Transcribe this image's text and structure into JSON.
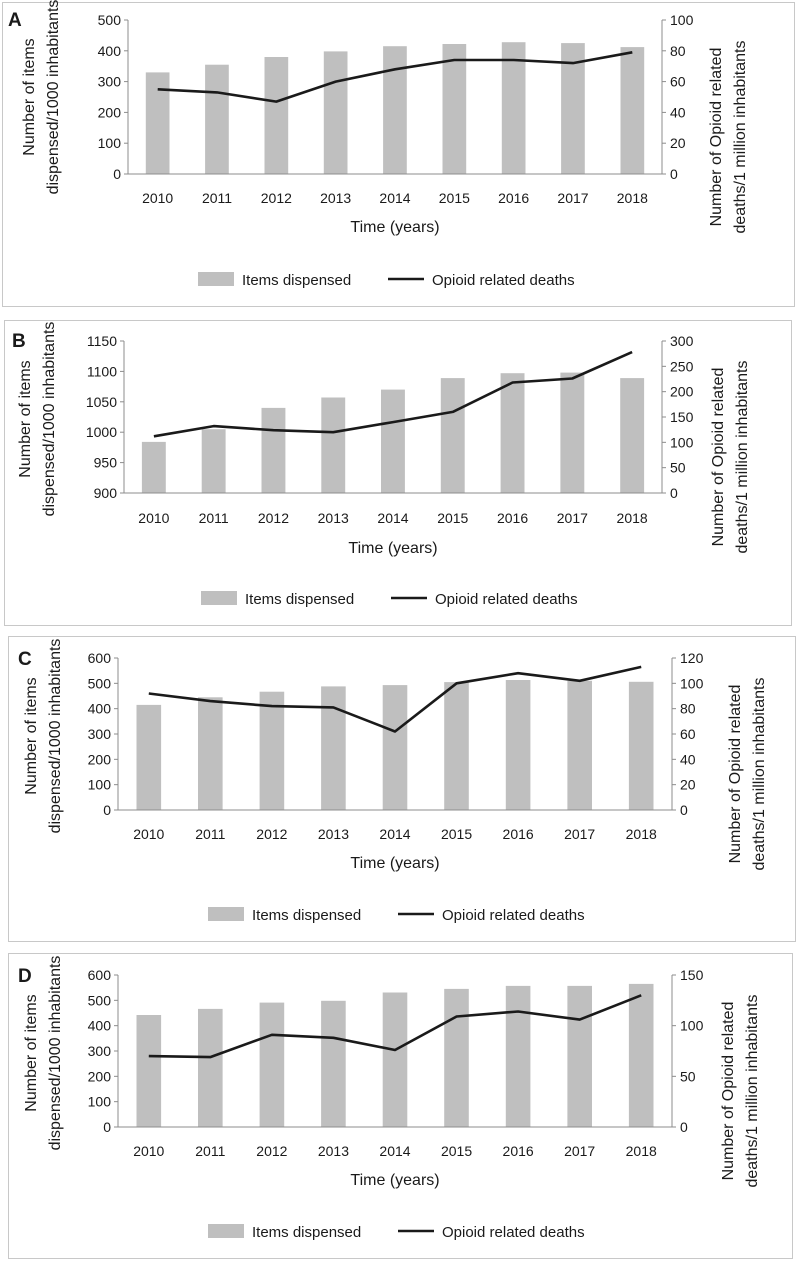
{
  "chart_data": [
    {
      "type": "bar",
      "panel": "A",
      "categories": [
        "2010",
        "2011",
        "2012",
        "2013",
        "2014",
        "2015",
        "2016",
        "2017",
        "2018"
      ],
      "series": [
        {
          "name": "Items dispensed",
          "kind": "bar",
          "axis": "left",
          "values": [
            330,
            355,
            380,
            398,
            415,
            422,
            428,
            425,
            412
          ]
        },
        {
          "name": "Opioid related deaths",
          "kind": "line",
          "axis": "right",
          "values": [
            55,
            53,
            47,
            60,
            68,
            74,
            74,
            72,
            79
          ]
        }
      ],
      "xlabel": "Time (years)",
      "ylabel": [
        "Number of items",
        "dispensed/1000 inhabitants"
      ],
      "y2label": [
        "Number of Opioid related",
        "deaths/1 million inhabitants"
      ],
      "ylim": [
        0,
        500
      ],
      "yticks": [
        0,
        100,
        200,
        300,
        400,
        500
      ],
      "y2lim": [
        0,
        100
      ],
      "y2ticks": [
        0,
        20,
        40,
        60,
        80,
        100
      ]
    },
    {
      "type": "bar",
      "panel": "B",
      "categories": [
        "2010",
        "2011",
        "2012",
        "2013",
        "2014",
        "2015",
        "2016",
        "2017",
        "2018"
      ],
      "series": [
        {
          "name": "Items dispensed",
          "kind": "bar",
          "axis": "left",
          "values": [
            984,
            1005,
            1040,
            1057,
            1070,
            1089,
            1097,
            1098,
            1089
          ]
        },
        {
          "name": "Opioid related deaths",
          "kind": "line",
          "axis": "right",
          "values": [
            112,
            132,
            124,
            120,
            140,
            160,
            218,
            226,
            278
          ]
        }
      ],
      "xlabel": "Time (years)",
      "ylabel": [
        "Number of items",
        "dispensed/1000 inhabitants"
      ],
      "y2label": [
        "Number of Opioid related",
        "deaths/1 million inhabitants"
      ],
      "ylim": [
        900,
        1150
      ],
      "yticks": [
        900,
        950,
        1000,
        1050,
        1100,
        1150
      ],
      "y2lim": [
        0,
        300
      ],
      "y2ticks": [
        0,
        50,
        100,
        150,
        200,
        250,
        300
      ]
    },
    {
      "type": "bar",
      "panel": "C",
      "categories": [
        "2010",
        "2011",
        "2012",
        "2013",
        "2014",
        "2015",
        "2016",
        "2017",
        "2018"
      ],
      "series": [
        {
          "name": "Items dispensed",
          "kind": "bar",
          "axis": "left",
          "values": [
            415,
            445,
            467,
            488,
            493,
            505,
            513,
            510,
            506
          ]
        },
        {
          "name": "Opioid related deaths",
          "kind": "line",
          "axis": "right",
          "values": [
            92,
            86,
            82,
            81,
            62,
            100,
            108,
            102,
            113
          ]
        }
      ],
      "xlabel": "Time (years)",
      "ylabel": [
        "Number of items",
        "dispensed/1000 inhabitants"
      ],
      "y2label": [
        "Number of Opioid related",
        "deaths/1 million inhabitants"
      ],
      "ylim": [
        0,
        600
      ],
      "yticks": [
        0,
        100,
        200,
        300,
        400,
        500,
        600
      ],
      "y2lim": [
        0,
        120
      ],
      "y2ticks": [
        0,
        20,
        40,
        60,
        80,
        100,
        120
      ]
    },
    {
      "type": "bar",
      "panel": "D",
      "categories": [
        "2010",
        "2011",
        "2012",
        "2013",
        "2014",
        "2015",
        "2016",
        "2017",
        "2018"
      ],
      "series": [
        {
          "name": "Items dispensed",
          "kind": "bar",
          "axis": "left",
          "values": [
            442,
            466,
            491,
            498,
            531,
            545,
            557,
            557,
            565
          ]
        },
        {
          "name": "Opioid related deaths",
          "kind": "line",
          "axis": "right",
          "values": [
            70,
            69,
            91,
            88,
            76,
            109,
            114,
            106,
            130
          ]
        }
      ],
      "xlabel": "Time (years)",
      "ylabel": [
        "Number of items",
        "dispensed/1000 inhabitants"
      ],
      "y2label": [
        "Number of Opioid related",
        "deaths/1 million inhabitants"
      ],
      "ylim": [
        0,
        600
      ],
      "yticks": [
        0,
        100,
        200,
        300,
        400,
        500,
        600
      ],
      "y2lim": [
        0,
        150
      ],
      "y2ticks": [
        0,
        50,
        100,
        150
      ]
    }
  ],
  "colors": {
    "bar": "#bfbfbf",
    "line": "#1a1a1a",
    "frame": "#c8c8c8",
    "axis": "#8c8c8c"
  }
}
